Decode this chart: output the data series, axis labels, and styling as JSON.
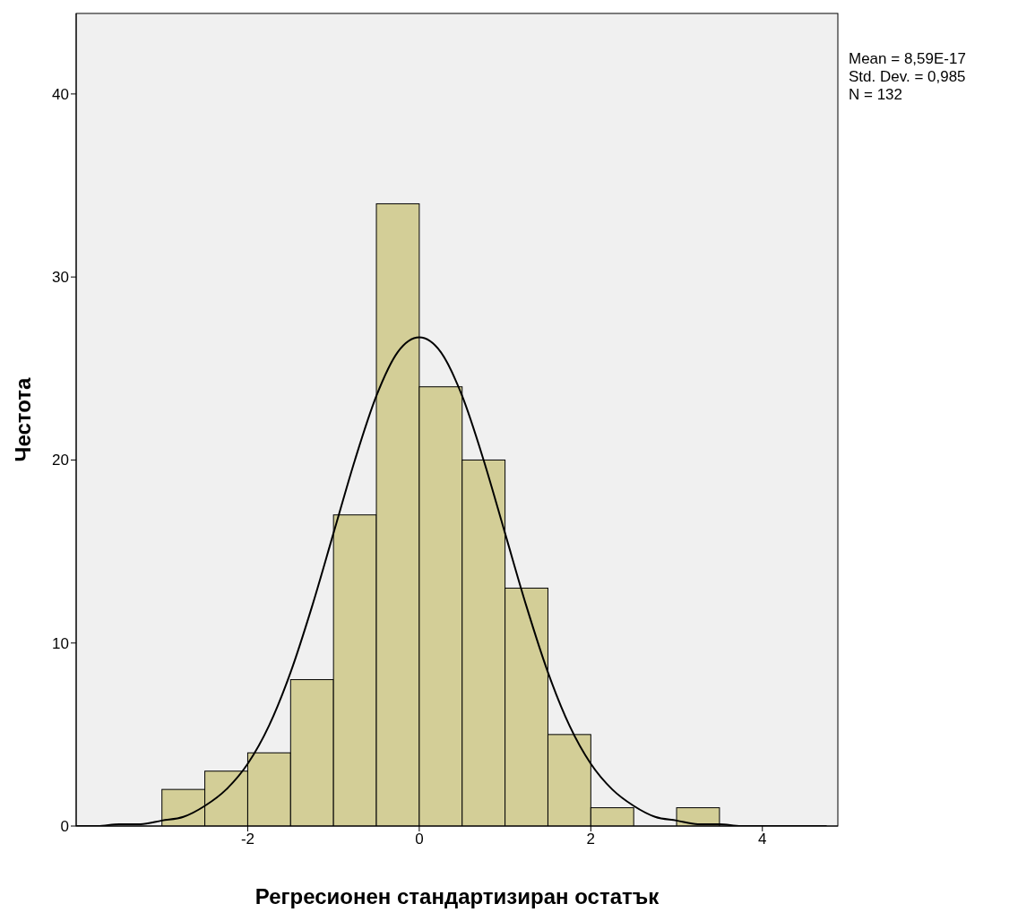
{
  "chart_data": {
    "type": "histogram",
    "xlabel": "Регресионен стандартизиран остатък",
    "ylabel": "Честота",
    "bins": [
      -3,
      -2.5,
      -2,
      -1.5,
      -1,
      -0.5,
      0,
      0.5,
      1,
      1.5,
      2,
      2.5,
      3,
      3.5
    ],
    "values": [
      2,
      3,
      4,
      8,
      17,
      34,
      24,
      20,
      13,
      5,
      1,
      0,
      1
    ],
    "color": "#d3ce97",
    "series": [
      {
        "type": "line",
        "color": "#000000",
        "x": [
          -4,
          -3.75,
          -3.5,
          -3.25,
          -3,
          -2.75,
          -2.5,
          -2.25,
          -2,
          -1.75,
          -1.5,
          -1.25,
          -1,
          -0.75,
          -0.5,
          -0.25,
          0,
          0.25,
          0.5,
          0.75,
          1,
          1.25,
          1.5,
          1.75,
          2,
          2.25,
          2.5,
          2.75,
          3,
          3.25,
          3.5,
          3.75,
          4,
          4.25,
          4.5,
          4.75
        ],
        "values": [
          0,
          0,
          0.1,
          0.1,
          0.3,
          0.5,
          1.1,
          2,
          3.4,
          5.5,
          8.4,
          12,
          16,
          20,
          23.5,
          25.9,
          26.7,
          25.9,
          23.5,
          20,
          16,
          12,
          8.4,
          5.5,
          3.4,
          2,
          1.1,
          0.5,
          0.3,
          0.1,
          0.1,
          0,
          0,
          0,
          0,
          0
        ]
      }
    ],
    "xlim": [
      -4,
      4.88
    ],
    "ylim": [
      0,
      44.4
    ],
    "xticks": [
      -2,
      0,
      2,
      4
    ],
    "yticks": [
      0,
      10,
      20,
      30,
      40
    ],
    "annotations": [
      "Mean = 8,59E-17",
      "Std. Dev. = 0,985",
      "N = 132"
    ]
  }
}
